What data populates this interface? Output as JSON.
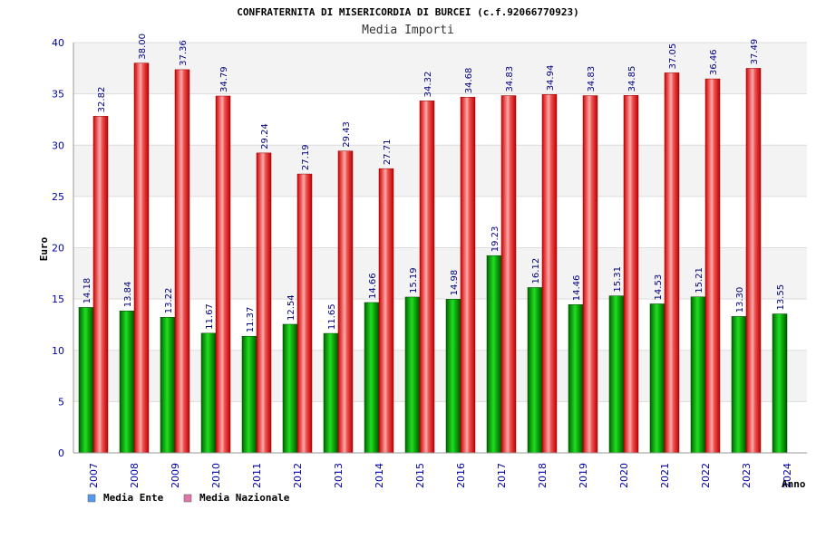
{
  "chart_data": {
    "type": "bar",
    "title": "CONFRATERNITA DI MISERICORDIA DI BURCEI (c.f.92066770923)",
    "subtitle": "Media Importi",
    "xlabel": "Anno",
    "ylabel": "Euro",
    "ylim": [
      0,
      40
    ],
    "yticks": [
      0,
      5,
      10,
      15,
      20,
      25,
      30,
      35,
      40
    ],
    "grid": true,
    "legend_position": "bottom-left",
    "categories": [
      "2007",
      "2008",
      "2009",
      "2010",
      "2011",
      "2012",
      "2013",
      "2014",
      "2015",
      "2016",
      "2017",
      "2018",
      "2019",
      "2020",
      "2021",
      "2022",
      "2023",
      "2024"
    ],
    "series": [
      {
        "name": "Media Ente",
        "color": "#00aa00",
        "legend_color": "#5599ee",
        "values": [
          14.18,
          13.84,
          13.22,
          11.67,
          11.37,
          12.54,
          11.65,
          14.66,
          15.19,
          14.98,
          19.23,
          16.12,
          14.46,
          15.31,
          14.53,
          15.21,
          13.3,
          13.55
        ],
        "labels": [
          "14.18",
          "13.84",
          "13.22",
          "11.67",
          "11.37",
          "12.54",
          "11.65",
          "14.66",
          "15.19",
          "14.98",
          "19.23",
          "16.12",
          "14.46",
          "15.31",
          "14.53",
          "15.21",
          "13.30",
          "13.55"
        ]
      },
      {
        "name": "Media Nazionale",
        "color": "#ee2222",
        "legend_color": "#dd77aa",
        "values": [
          32.82,
          38.0,
          37.36,
          34.79,
          29.24,
          27.19,
          29.43,
          27.71,
          34.32,
          34.68,
          34.83,
          34.94,
          34.83,
          34.85,
          37.05,
          36.46,
          37.49,
          null
        ],
        "labels": [
          "32.82",
          "38.00",
          "37.36",
          "34.79",
          "29.24",
          "27.19",
          "29.43",
          "27.71",
          "34.32",
          "34.68",
          "34.83",
          "34.94",
          "34.83",
          "34.85",
          "37.05",
          "36.46",
          "37.49",
          ""
        ]
      }
    ]
  }
}
